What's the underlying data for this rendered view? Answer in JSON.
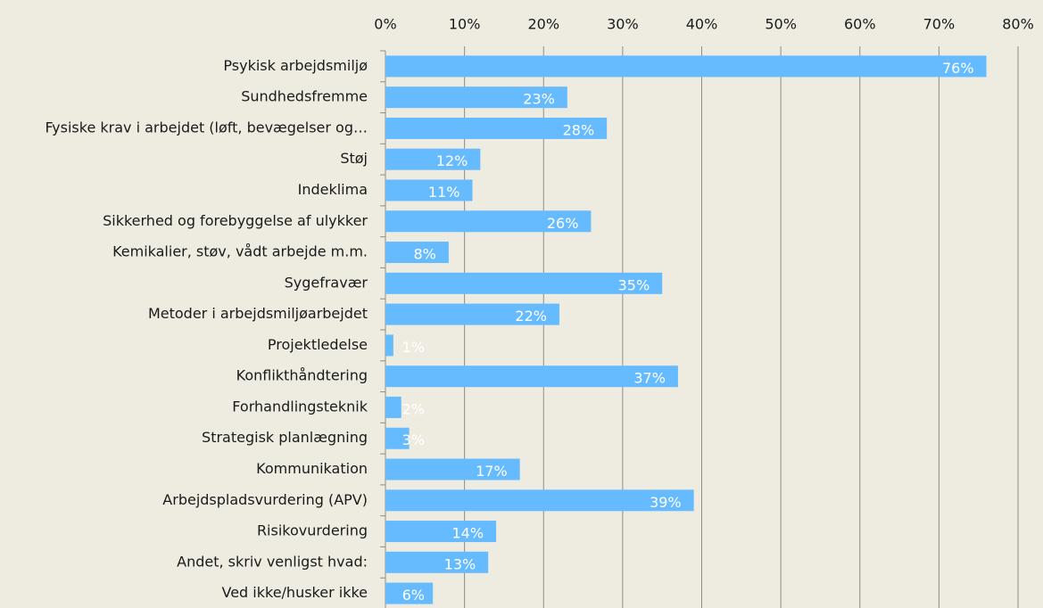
{
  "chart_data": {
    "type": "bar",
    "orientation": "horizontal",
    "categories": [
      "Psykisk arbejdsmiljø",
      "Sundhedsfremme",
      "Fysiske krav i arbejdet (løft, bevægelser og…",
      "Støj",
      "Indeklima",
      "Sikkerhed og forebyggelse af ulykker",
      "Kemikalier, støv, vådt arbejde m.m.",
      "Sygefravær",
      "Metoder i arbejdsmiljøarbejdet",
      "Projektledelse",
      "Konflikthåndtering",
      "Forhandlingsteknik",
      "Strategisk planlægning",
      "Kommunikation",
      "Arbejdspladsvurdering (APV)",
      "Risikovurdering",
      "Andet, skriv venligst hvad:",
      "Ved ikke/husker ikke"
    ],
    "values": [
      76,
      23,
      28,
      12,
      11,
      26,
      8,
      35,
      22,
      1,
      37,
      2,
      3,
      17,
      39,
      14,
      13,
      6
    ],
    "value_labels": [
      "76%",
      "23%",
      "28%",
      "12%",
      "11%",
      "26%",
      "8%",
      "35%",
      "22%",
      "1%",
      "37%",
      "2%",
      "3%",
      "17%",
      "39%",
      "14%",
      "13%",
      "6%"
    ],
    "color": "#66bbff",
    "xlim": [
      0,
      80
    ],
    "xticks": [
      {
        "value": 0,
        "label": "0%"
      },
      {
        "value": 10,
        "label": "10%"
      },
      {
        "value": 20,
        "label": "20%"
      },
      {
        "value": 30,
        "label": "30%"
      },
      {
        "value": 40,
        "label": "40%"
      },
      {
        "value": 50,
        "label": "50%"
      },
      {
        "value": 60,
        "label": "60%"
      },
      {
        "value": 70,
        "label": "70%"
      },
      {
        "value": 80,
        "label": "80%"
      }
    ],
    "grid": true
  }
}
